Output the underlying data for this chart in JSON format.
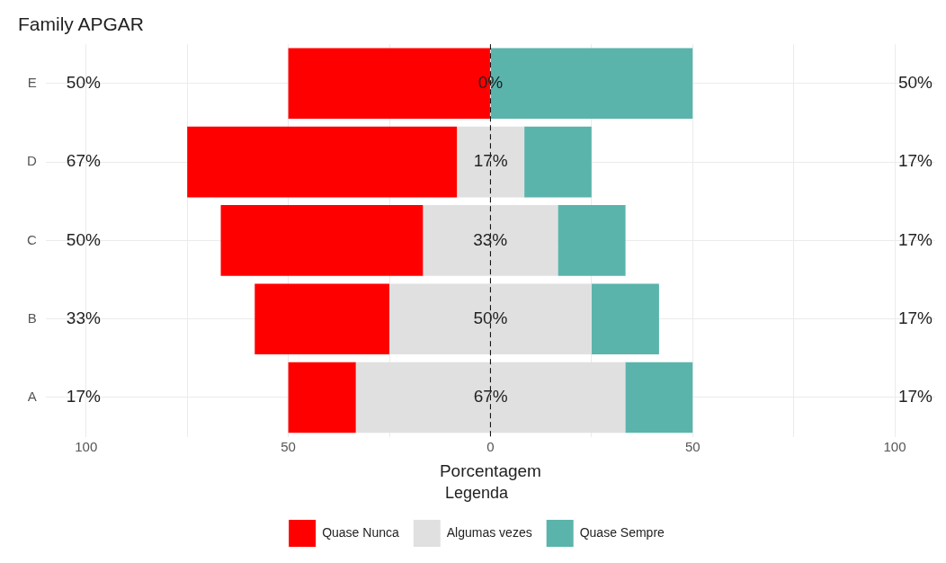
{
  "chart_data": {
    "type": "bar",
    "orientation": "horizontal",
    "title": "Family APGAR",
    "xlabel": "Porcentagem",
    "legend_title": "Legenda",
    "categories": [
      "E",
      "D",
      "C",
      "B",
      "A"
    ],
    "series": [
      {
        "name": "Quase Nunca",
        "color": "#ff0000",
        "values": [
          50,
          66.7,
          50,
          33.3,
          16.7
        ],
        "base": [
          -50,
          -75,
          -66.7,
          -58.3,
          -50
        ],
        "value_labels": [
          "50%",
          "67%",
          "50%",
          "33%",
          "17%"
        ]
      },
      {
        "name": "Algumas vezes",
        "color": "#e0e0e0",
        "values": [
          0,
          16.7,
          33.3,
          50,
          66.7
        ],
        "base": [
          null,
          -8.3,
          -16.7,
          -25,
          -33.3
        ],
        "value_labels": [
          "0%",
          "17%",
          "33%",
          "50%",
          "67%"
        ]
      },
      {
        "name": "Quase Sempre",
        "color": "#5ab4ac",
        "values": [
          50,
          16.7,
          16.7,
          16.7,
          16.7
        ],
        "base": [
          0,
          8.3,
          16.7,
          25,
          33.3
        ],
        "value_labels": [
          "50%",
          "17%",
          "17%",
          "17%",
          "17%"
        ]
      }
    ],
    "xlim": [
      -110,
      110
    ],
    "xticks": [
      {
        "value": -100,
        "label": "100"
      },
      {
        "value": -75,
        "label": null
      },
      {
        "value": -50,
        "label": "50"
      },
      {
        "value": -25,
        "label": null
      },
      0,
      {
        "value": 25,
        "label": null
      },
      50,
      {
        "value": 75,
        "label": null
      },
      100
    ],
    "ref_lines": [
      {
        "axis": "x",
        "value": 0,
        "color": "#000000",
        "line_style": "dashed"
      }
    ],
    "grid": true,
    "legend": "bottom"
  }
}
